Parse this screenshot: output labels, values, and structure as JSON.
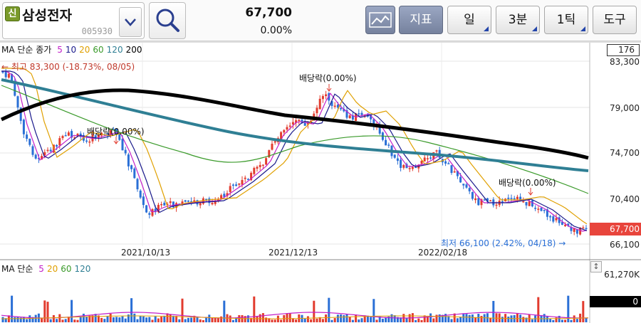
{
  "toolbar": {
    "stock_badge": "신",
    "stock_name": "삼성전자",
    "stock_code": "005930",
    "price": "67,700",
    "change": "0.00%",
    "indicator_label": "지표",
    "period_label": "일",
    "interval_label": "3분",
    "tick_label": "1틱",
    "tools_label": "도구",
    "icons": {
      "dropdown": "chevron-down-icon",
      "search": "search-icon",
      "chart_type": "line-chart-icon"
    }
  },
  "price_chart": {
    "legend_title": "MA 단순 종가",
    "ma_periods": [
      {
        "label": "5",
        "color": "#c21fc9"
      },
      {
        "label": "10",
        "color": "#1a1a8c"
      },
      {
        "label": "20",
        "color": "#e0a000"
      },
      {
        "label": "60",
        "color": "#3a9a2a"
      },
      {
        "label": "120",
        "color": "#2f7f94"
      },
      {
        "label": "200",
        "color": "#000000"
      }
    ],
    "crosshair_value": "176",
    "y_ticks": [
      "83,300",
      "79,000",
      "74,700",
      "70,400",
      "66,100"
    ],
    "current_price_tag": "67,700",
    "x_labels": [
      "2021/10/13",
      "2021/12/13",
      "2022/02/18"
    ],
    "high_annotation": "← 최고 83,300 (-18.73%, 08/05)",
    "low_annotation": "최저 66,100 (2.42%, 04/18) →",
    "dividend_labels": [
      "배당락(0.00%)",
      "배당락(0.00%)",
      "배당락(0.00%)"
    ],
    "colors": {
      "up": "#e23b2e",
      "down": "#2a6fd6",
      "price_tag": "#e8453c"
    }
  },
  "volume_chart": {
    "legend_title": "MA 단순",
    "ma_periods": [
      {
        "label": "5",
        "color": "#c21fc9"
      },
      {
        "label": "20",
        "color": "#e0a000"
      },
      {
        "label": "60",
        "color": "#3a9a2a"
      },
      {
        "label": "120",
        "color": "#2f7f94"
      }
    ],
    "y_max_label": "61,270K",
    "current_volume_tag": "0",
    "icons": {
      "resize": "resize-arrow-icon"
    }
  }
}
